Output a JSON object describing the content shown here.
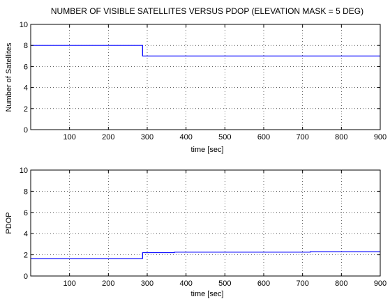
{
  "chart_data": [
    {
      "type": "line",
      "title": "NUMBER OF VISIBLE SATELLITES VERSUS PDOP (ELEVATION MASK = 5 DEG)",
      "xlabel": "time [sec]",
      "ylabel": "Number of Satellites",
      "xlim": [
        0,
        900
      ],
      "ylim": [
        0,
        10
      ],
      "xticks": [
        100,
        200,
        300,
        400,
        500,
        600,
        700,
        800,
        900
      ],
      "yticks": [
        0,
        2,
        4,
        6,
        8,
        10
      ],
      "grid": "dotted",
      "series": [
        {
          "color": "#0000ff",
          "step": true,
          "x": [
            0,
            288,
            288,
            900
          ],
          "y": [
            8,
            8,
            7,
            7
          ]
        }
      ]
    },
    {
      "type": "line",
      "title": "",
      "xlabel": "time [sec]",
      "ylabel": "PDOP",
      "xlim": [
        0,
        900
      ],
      "ylim": [
        0,
        10
      ],
      "xticks": [
        100,
        200,
        300,
        400,
        500,
        600,
        700,
        800,
        900
      ],
      "yticks": [
        0,
        2,
        4,
        6,
        8,
        10
      ],
      "grid": "dotted",
      "series": [
        {
          "color": "#0000ff",
          "step": true,
          "x": [
            0,
            288,
            288,
            370,
            370,
            720,
            720,
            900
          ],
          "y": [
            1.65,
            1.65,
            2.2,
            2.2,
            2.25,
            2.25,
            2.3,
            2.3
          ]
        }
      ]
    }
  ]
}
